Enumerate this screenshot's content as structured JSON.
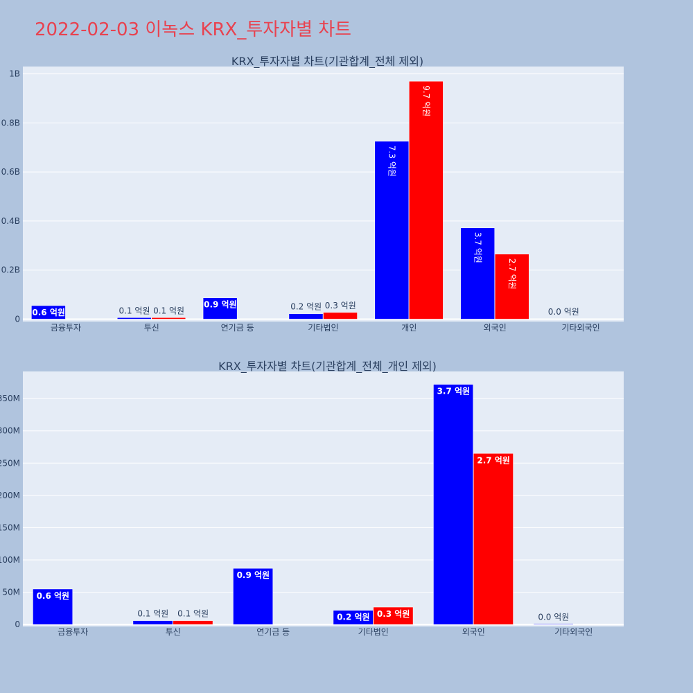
{
  "title": "2022-02-03 이녹스 KRX_투자자별 차트",
  "colors": {
    "background": "#b0c4de",
    "plot_bg": "#e5ecf6",
    "title": "#e8424f",
    "series_blue": "#0000ff",
    "series_red": "#ff0000"
  },
  "chart_data": [
    {
      "type": "bar",
      "title": "KRX_투자자별 차트(기관합계_전체 제외)",
      "categories": [
        "금융투자",
        "투신",
        "연기금 등",
        "기타법인",
        "개인",
        "외국인",
        "기타외국인"
      ],
      "y_ticks": [
        {
          "value": 0,
          "label": "0"
        },
        {
          "value": 200000000,
          "label": "0.2B"
        },
        {
          "value": 400000000,
          "label": "0.4B"
        },
        {
          "value": 600000000,
          "label": "0.6B"
        },
        {
          "value": 800000000,
          "label": "0.8B"
        },
        {
          "value": 1000000000,
          "label": "1B"
        }
      ],
      "ylim": [
        -10000000,
        1030000000
      ],
      "series": [
        {
          "color": "#0000ff",
          "values": [
            55000000,
            6000000,
            87000000,
            22000000,
            725000000,
            372000000,
            1000000
          ],
          "labels": [
            "0.6 억원",
            "0.1 억원",
            "0.9 억원",
            "0.2 억원",
            "7.3 억원",
            "3.7 억원",
            "0.0 억원"
          ]
        },
        {
          "color": "#ff0000",
          "values": [
            0,
            6000000,
            0,
            27000000,
            970000000,
            265000000,
            0
          ],
          "labels": [
            "",
            "0.1 억원",
            "",
            "0.3 억원",
            "9.7 억원",
            "2.7 억원",
            ""
          ]
        }
      ]
    },
    {
      "type": "bar",
      "title": "KRX_투자자별 차트(기관합계_전체_개인 제외)",
      "categories": [
        "금융투자",
        "투신",
        "연기금 등",
        "기타법인",
        "외국인",
        "기타외국인"
      ],
      "y_ticks": [
        {
          "value": 0,
          "label": "0"
        },
        {
          "value": 50000000,
          "label": "50M"
        },
        {
          "value": 100000000,
          "label": "100M"
        },
        {
          "value": 150000000,
          "label": "150M"
        },
        {
          "value": 200000000,
          "label": "200M"
        },
        {
          "value": 250000000,
          "label": "250M"
        },
        {
          "value": 300000000,
          "label": "300M"
        },
        {
          "value": 350000000,
          "label": "350M"
        }
      ],
      "ylim": [
        -3000000,
        392000000
      ],
      "series": [
        {
          "color": "#0000ff",
          "values": [
            55000000,
            6000000,
            87000000,
            22000000,
            372000000,
            1000000
          ],
          "labels": [
            "0.6 억원",
            "0.1 억원",
            "0.9 억원",
            "0.2 억원",
            "3.7 억원",
            "0.0 억원"
          ]
        },
        {
          "color": "#ff0000",
          "values": [
            0,
            6000000,
            0,
            27000000,
            265000000,
            0
          ],
          "labels": [
            "",
            "0.1 억원",
            "",
            "0.3 억원",
            "2.7 억원",
            ""
          ]
        }
      ]
    }
  ]
}
